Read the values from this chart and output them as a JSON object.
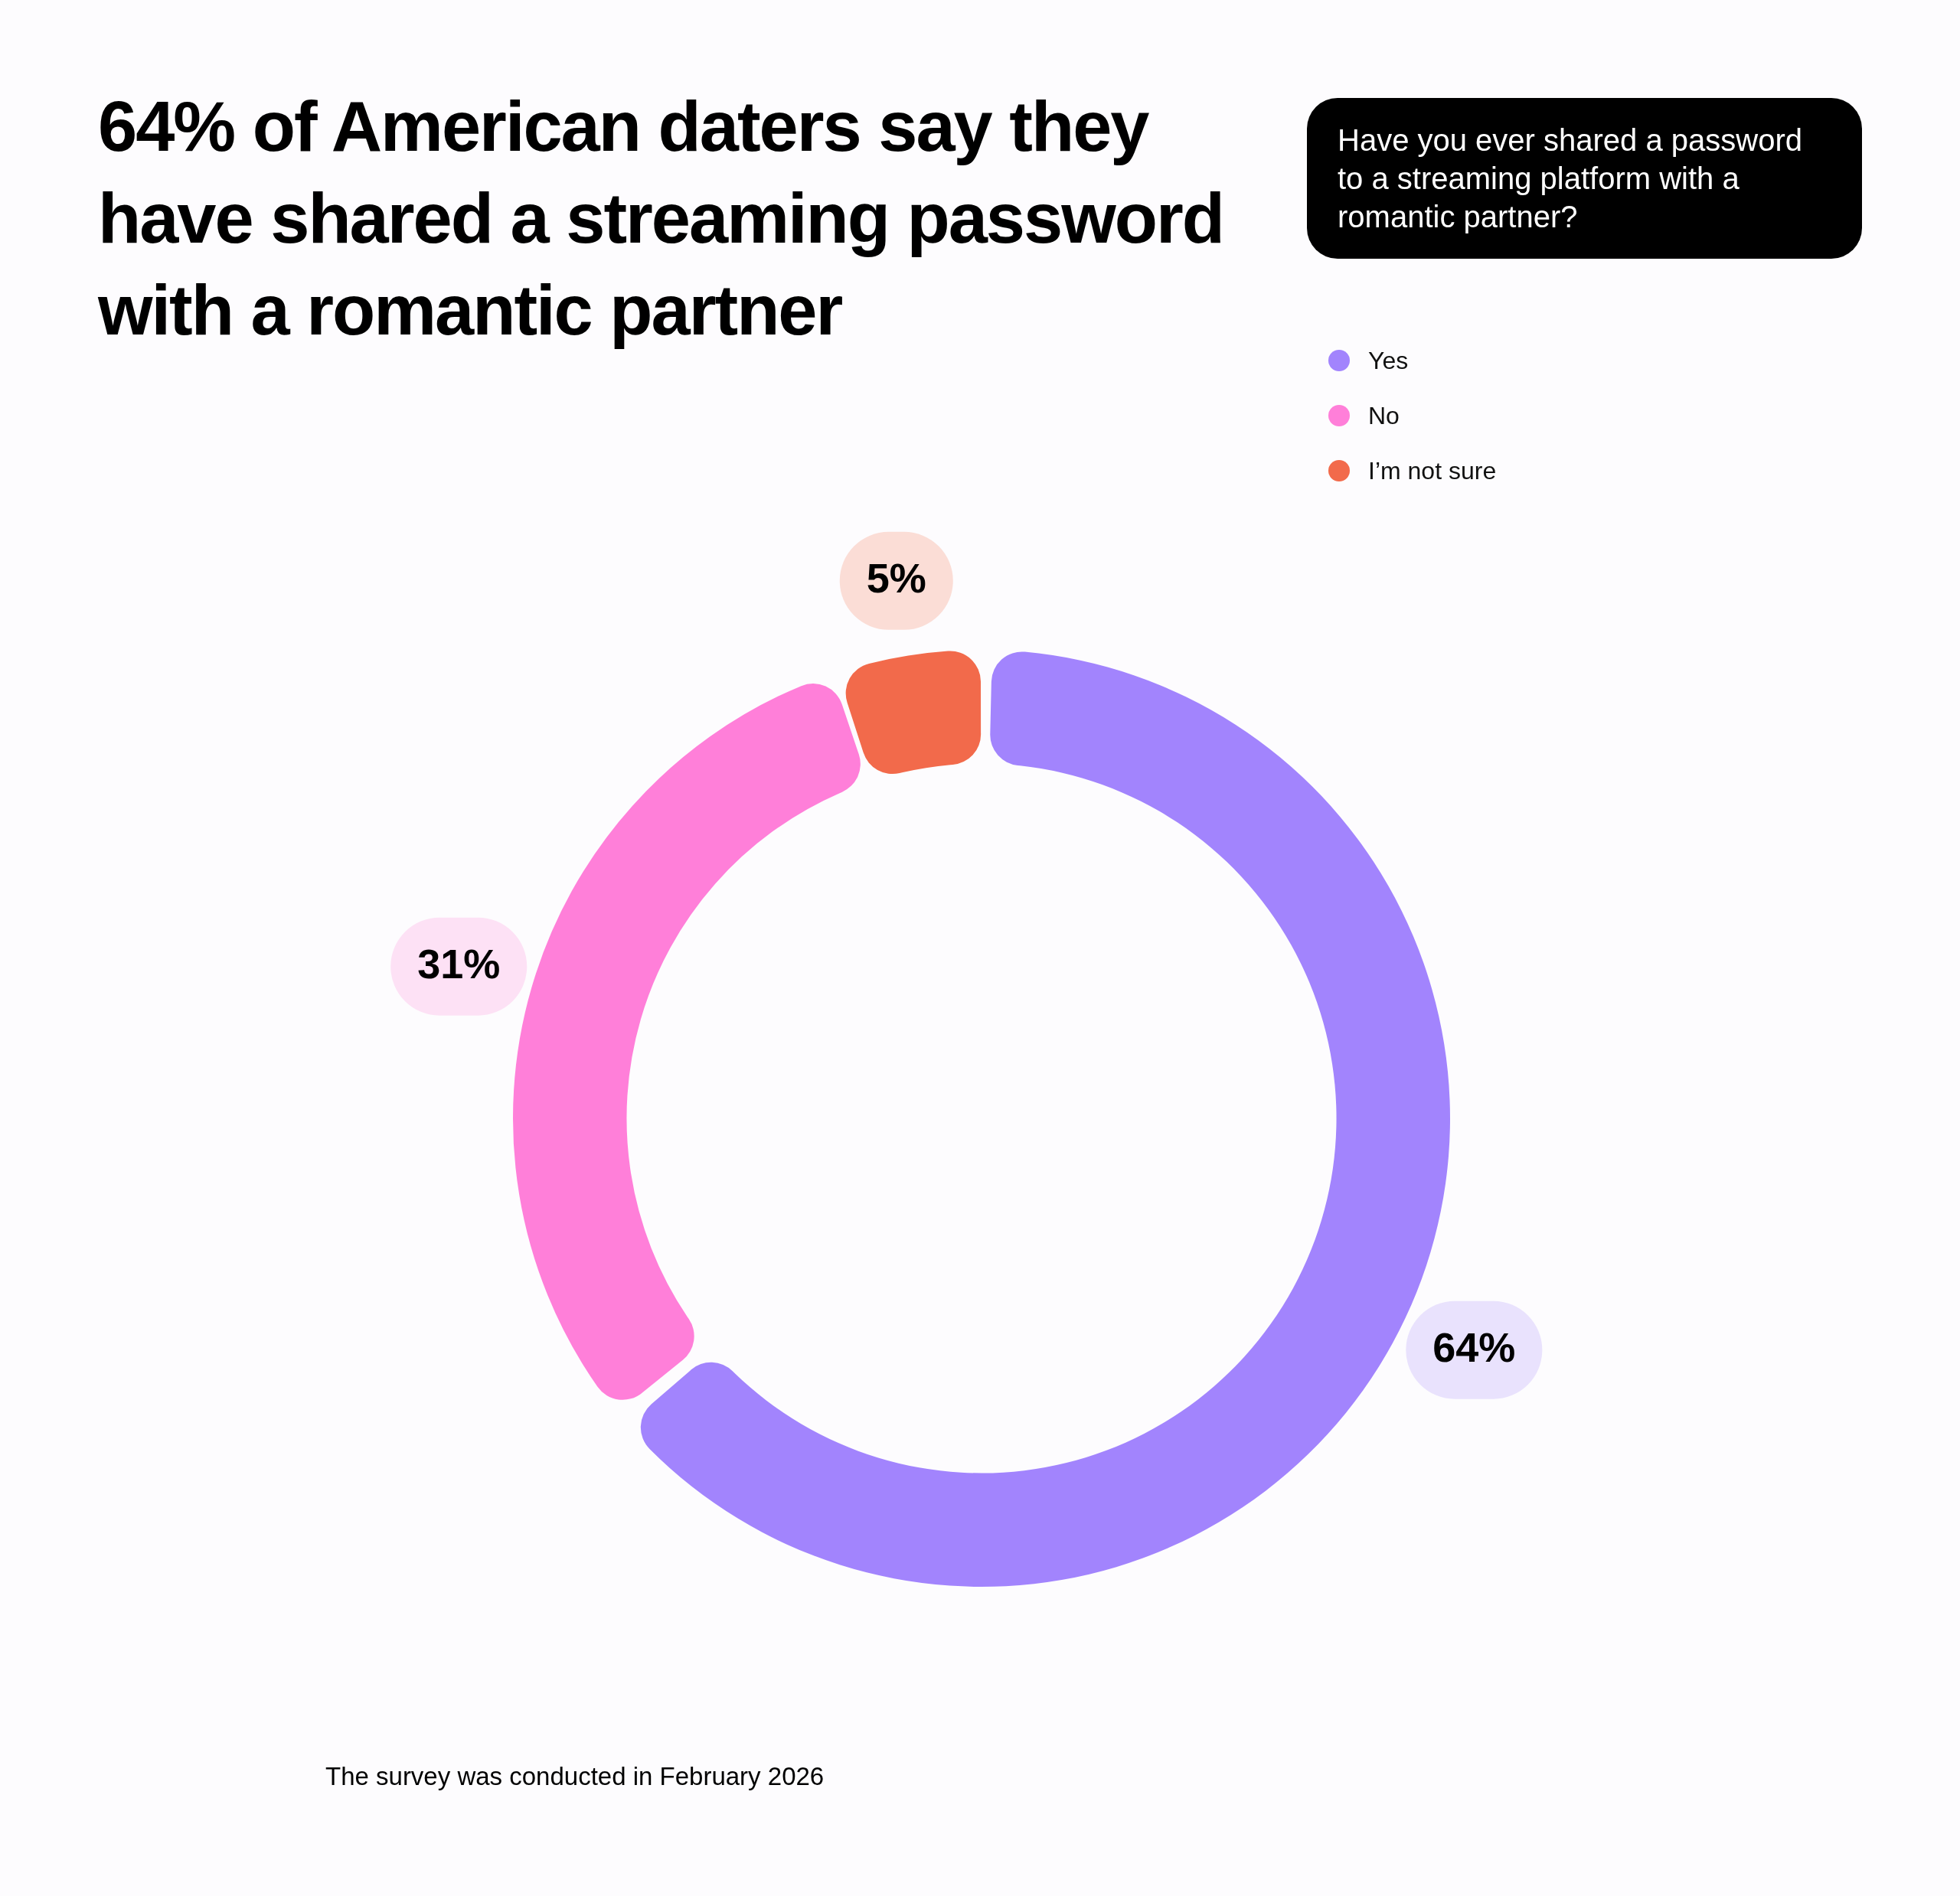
{
  "chart_data": {
    "type": "donut",
    "title": "64% of American daters say they have shared a streaming password with a romantic partner",
    "subtitle": "Have you ever shared a password to a streaming platform with a romantic partner?",
    "categories": [
      "Yes",
      "No",
      "I’m not sure"
    ],
    "values": [
      64,
      31,
      5
    ],
    "colors": [
      "#a284fd",
      "#ff7fd9",
      "#f26a4b"
    ],
    "value_labels": [
      "64%",
      "31%",
      "5%"
    ],
    "legend": "top right",
    "annotations": [
      "The survey was conducted in February 2026"
    ]
  }
}
